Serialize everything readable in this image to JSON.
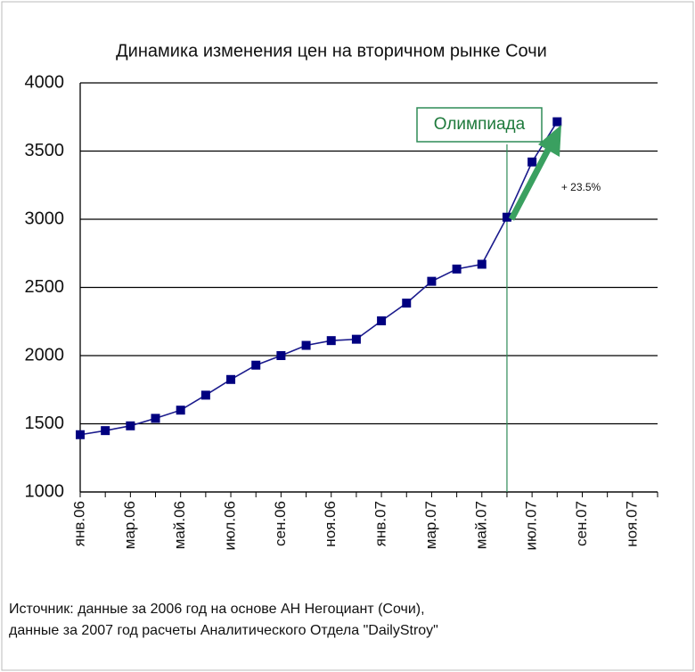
{
  "chart_data": {
    "type": "line",
    "title": "Динамика изменения цен на вторичном рынке Сочи",
    "categories": [
      "янв.06",
      null,
      "мар.06",
      null,
      "май.06",
      null,
      "июл.06",
      null,
      "сен.06",
      null,
      "ноя.06",
      null,
      "янв.07",
      null,
      "мар.07",
      null,
      "май.07",
      null,
      "июл.07",
      null,
      "сен.07",
      null,
      "ноя.07",
      null
    ],
    "values": [
      1420,
      1450,
      1485,
      1540,
      1600,
      1710,
      1825,
      1930,
      2000,
      2075,
      2110,
      2120,
      2255,
      2385,
      2545,
      2635,
      2670,
      3015,
      3420,
      3715,
      null,
      null,
      null,
      null
    ],
    "color": "#1a1a8c",
    "marker_color": "#000080",
    "ylim": [
      1000,
      4000
    ],
    "yticks": [
      1000,
      1500,
      2000,
      2500,
      3000,
      3500,
      4000
    ],
    "grid": true,
    "annotations": [
      "Олимпиада",
      "+ 23.5%"
    ],
    "source": [
      "Источник:  данные за 2006 год на основе АН Негоциант (Сочи),",
      "данные за 2007 год расчеты Аналитического Отдела \"DailyStroy\""
    ]
  }
}
